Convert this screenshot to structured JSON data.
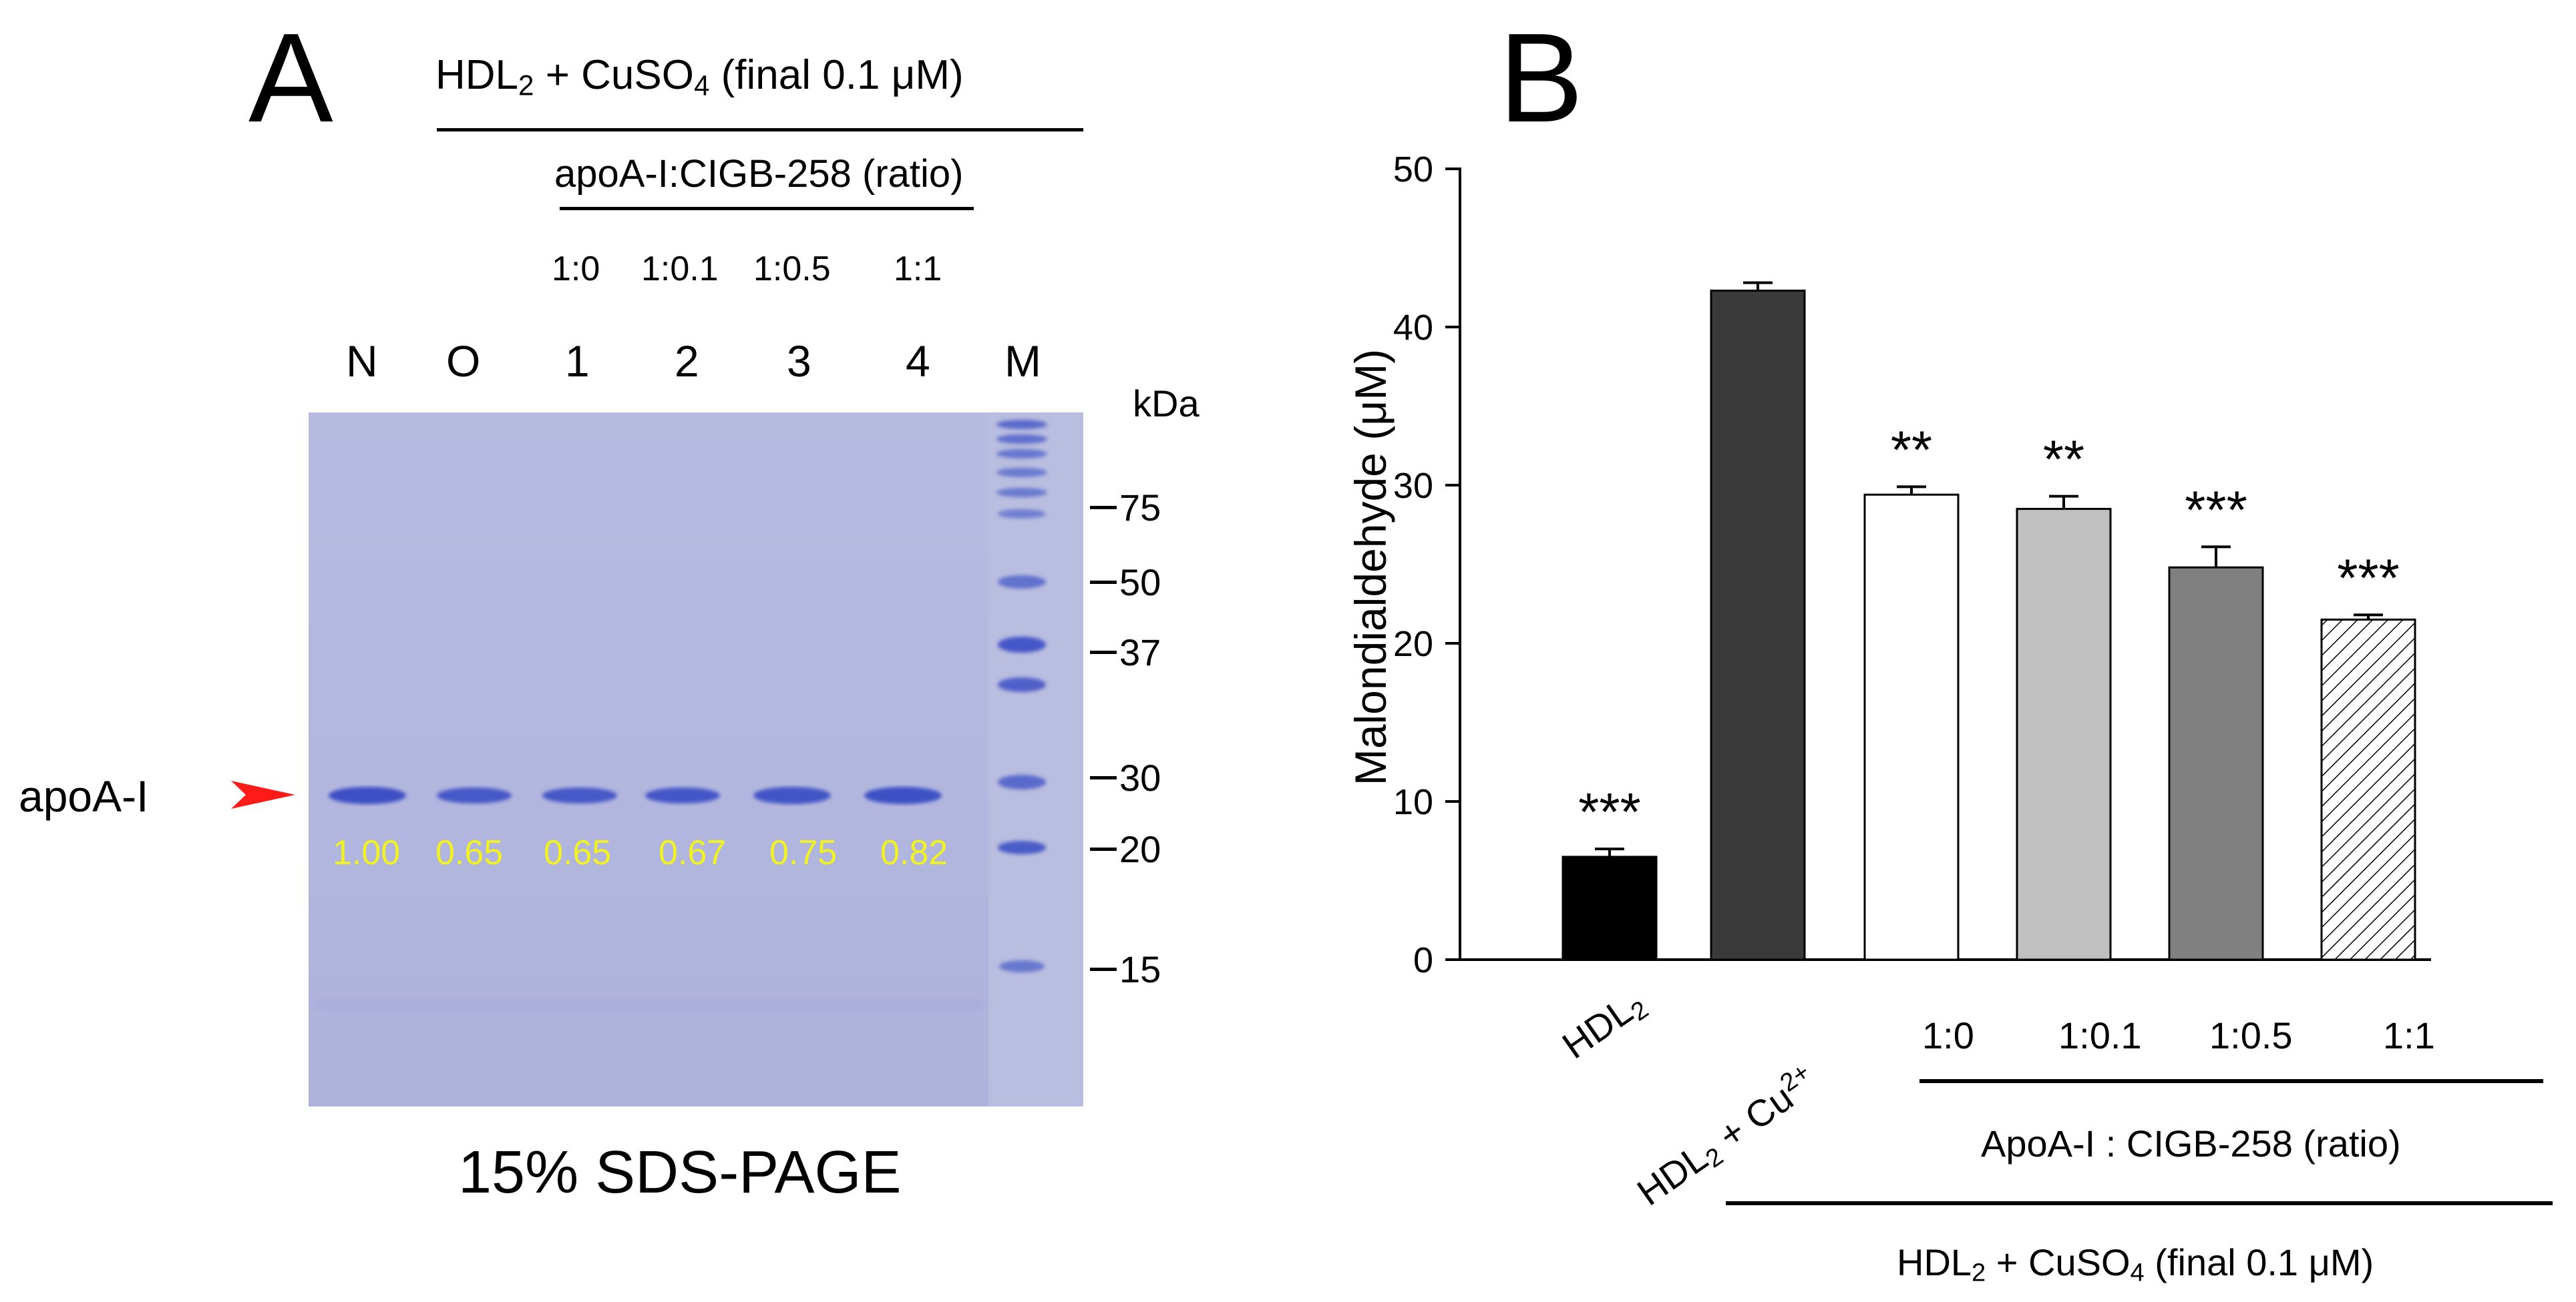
{
  "panel_a": {
    "letter": "A",
    "treatment_main": "HDL",
    "treatment_sub": "2",
    "treatment_rest_1": " + CuSO",
    "treatment_sub2": "4",
    "treatment_rest_2": " (final 0.1 μM)",
    "ratio_header": "apoA-I:CIGB-258 (ratio)",
    "ratios": [
      "1:0",
      "1:0.1",
      "1:0.5",
      "1:1"
    ],
    "lanes": [
      "N",
      "O",
      "1",
      "2",
      "3",
      "4",
      "M"
    ],
    "kda_label": "kDa",
    "markers": [
      "75",
      "50",
      "37",
      "30",
      "20",
      "15"
    ],
    "band_label": "apoA-I",
    "band_values": [
      "1.00",
      "0.65",
      "0.65",
      "0.67",
      "0.75",
      "0.82"
    ],
    "caption": "15% SDS-PAGE",
    "colors": {
      "gel_background": "#b8bde0",
      "band": "#3c4fc4",
      "arrow": "#ff1a1a",
      "band_value_text": "#f2f21f"
    }
  },
  "panel_b": {
    "letter": "B",
    "group_line1": "ApoA-I : CIGB-258 (ratio)",
    "group_line2_main": "HDL",
    "group_line2_sub": "2",
    "group_line2_rest": " + CuSO",
    "group_line2_sub2": "4",
    "group_line2_tail": " (final 0.1 μM)"
  },
  "chart_data": {
    "type": "bar",
    "ylabel": "Malondialdehyde (μM)",
    "ylim": [
      0,
      50
    ],
    "yticks": [
      0,
      10,
      20,
      30,
      40,
      50
    ],
    "categories": [
      "HDL2",
      "HDL2 + Cu2+",
      "1:0",
      "1:0.1",
      "1:0.5",
      "1:1"
    ],
    "values": [
      6.5,
      42.3,
      29.4,
      28.5,
      24.8,
      21.5
    ],
    "errors": [
      0.5,
      0.5,
      0.5,
      0.8,
      1.3,
      0.3
    ],
    "significance": [
      "***",
      "",
      "**",
      "**",
      "***",
      "***"
    ],
    "fills": [
      "#000000",
      "#3a3a3a",
      "#ffffff",
      "#c0c0c0",
      "#808080",
      "hatch"
    ],
    "grid": false,
    "legend": "none"
  }
}
